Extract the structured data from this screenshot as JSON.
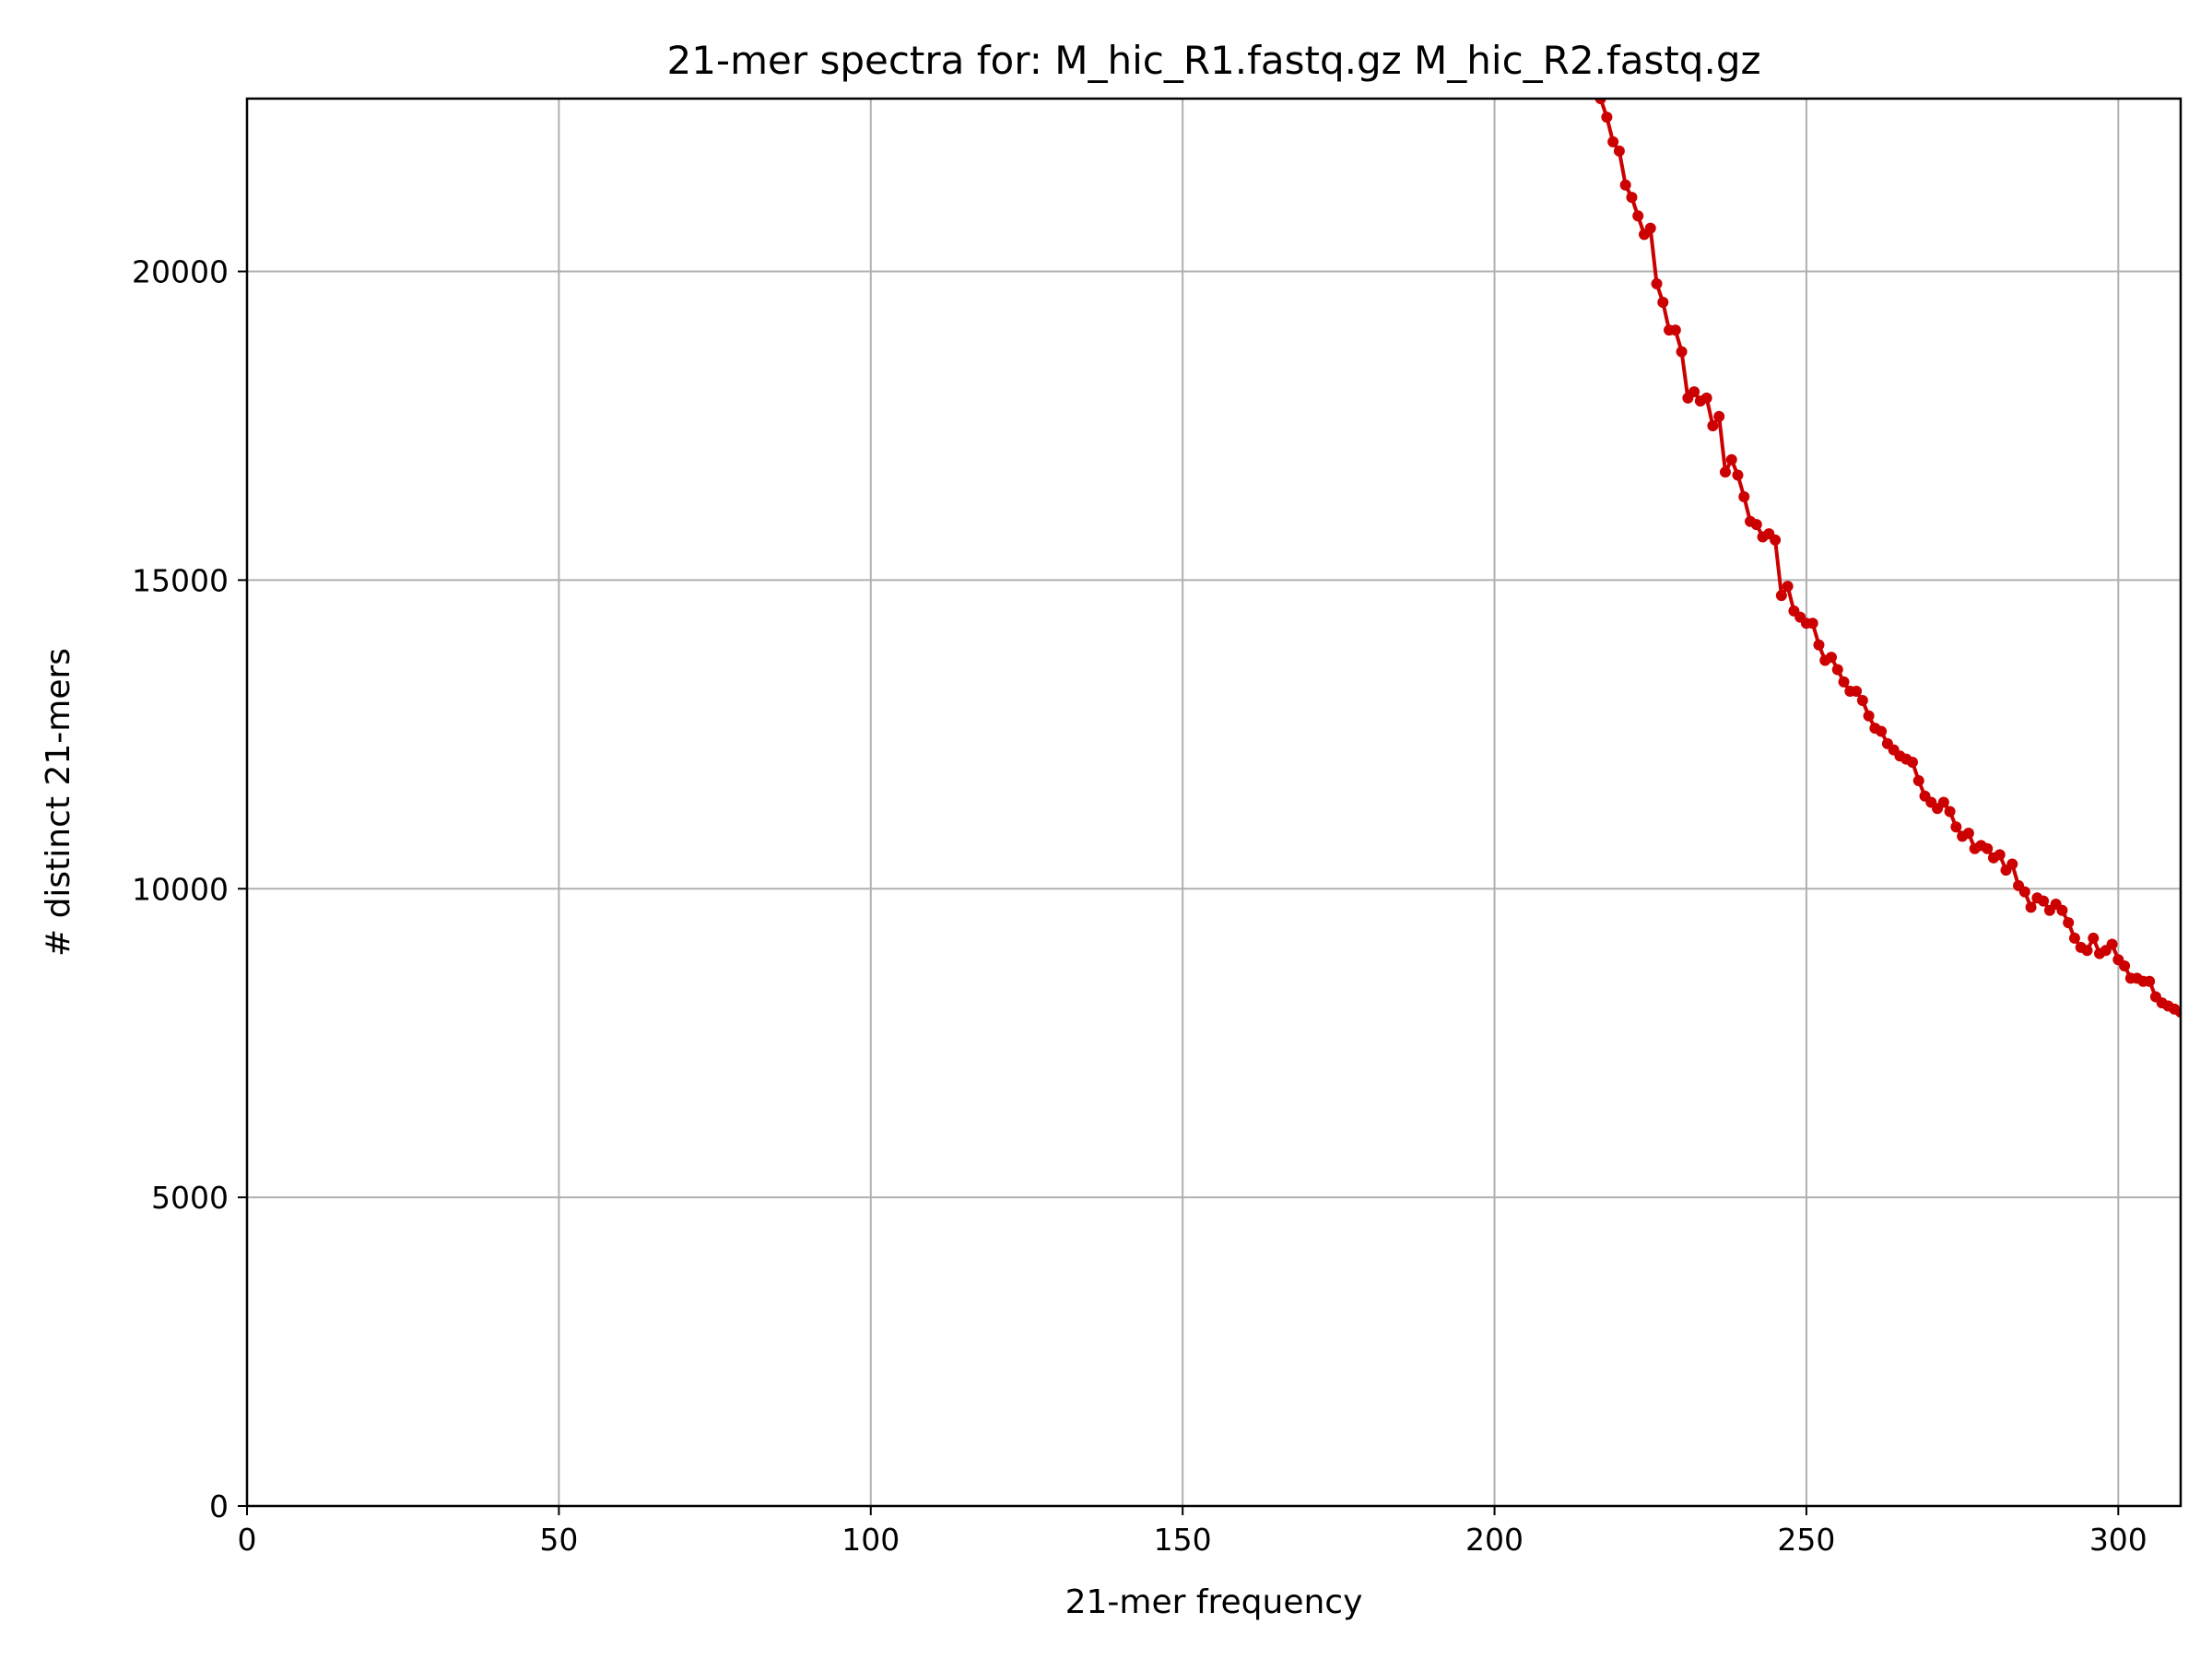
{
  "chart_data": {
    "type": "line",
    "title": "21-mer spectra for: M_hic_R1.fastq.gz M_hic_R2.fastq.gz",
    "xlabel": "21-mer frequency",
    "ylabel": "# distinct 21-mers",
    "xlim": [
      0,
      310
    ],
    "ylim": [
      0,
      22800
    ],
    "xticks": [
      0,
      50,
      100,
      150,
      200,
      250,
      300
    ],
    "yticks": [
      0,
      5000,
      10000,
      15000,
      20000
    ],
    "grid": true,
    "series": [
      {
        "color": "#cc0000",
        "marker": "circle",
        "x": [
          217,
          218,
          219,
          220,
          221,
          222,
          223,
          224,
          225,
          226,
          227,
          228,
          229,
          230,
          231,
          232,
          233,
          234,
          235,
          236,
          237,
          238,
          239,
          240,
          241,
          242,
          243,
          244,
          245,
          246,
          247,
          248,
          249,
          250,
          251,
          252,
          253,
          254,
          255,
          256,
          257,
          258,
          259,
          260,
          261,
          262,
          263,
          264,
          265,
          266,
          267,
          268,
          269,
          270,
          271,
          272,
          273,
          274,
          275,
          276,
          277,
          278,
          279,
          280,
          281,
          282,
          283,
          284,
          285,
          286,
          287,
          288,
          289,
          290,
          291,
          292,
          293,
          294,
          295,
          296,
          297,
          298,
          299,
          300,
          301,
          302,
          303,
          304,
          305,
          306,
          307,
          308,
          309,
          310
        ],
        "y": [
          22800,
          22500,
          22100,
          21950,
          21400,
          21200,
          20900,
          20600,
          20700,
          19800,
          19500,
          19050,
          19050,
          18700,
          17950,
          18050,
          17900,
          17950,
          17500,
          17650,
          16750,
          16950,
          16700,
          16350,
          15950,
          15900,
          15700,
          15750,
          15650,
          14750,
          14900,
          14500,
          14400,
          14300,
          14300,
          13950,
          13700,
          13750,
          13550,
          13350,
          13200,
          13200,
          13050,
          12800,
          12600,
          12550,
          12350,
          12250,
          12150,
          12100,
          12050,
          11750,
          11500,
          11400,
          11300,
          11400,
          11250,
          11000,
          10850,
          10900,
          10650,
          10700,
          10650,
          10500,
          10550,
          10300,
          10400,
          10050,
          9950,
          9700,
          9850,
          9800,
          9650,
          9750,
          9650,
          9450,
          9200,
          9050,
          9000,
          9200,
          8950,
          9000,
          9100,
          8850,
          8750,
          8550,
          8550,
          8500,
          8500,
          8250,
          8150,
          8100,
          8050,
          8000
        ]
      }
    ]
  }
}
